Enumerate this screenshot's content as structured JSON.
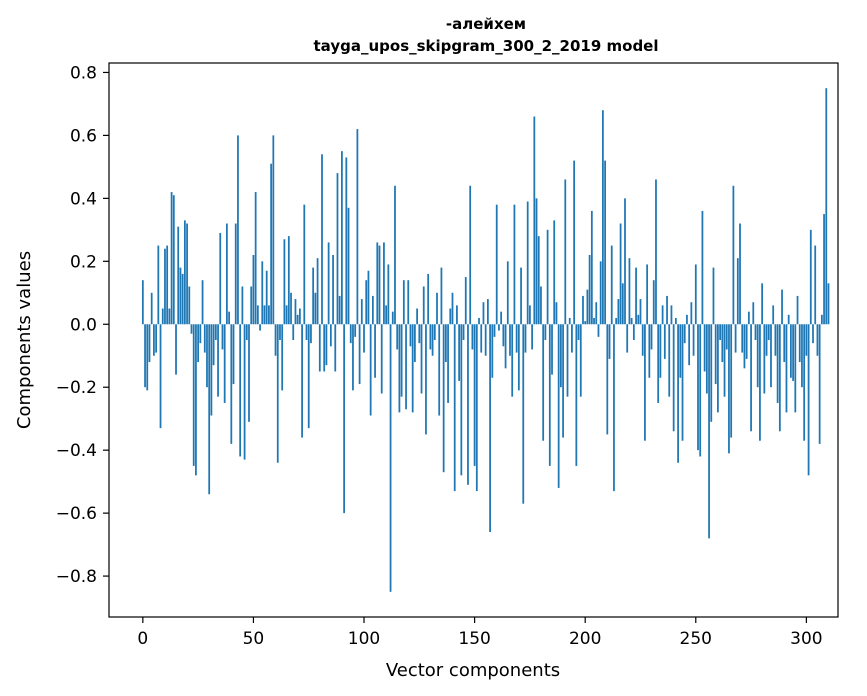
{
  "chart_data": {
    "type": "bar",
    "title": "-алейхем",
    "subtitle": "tayga_upos_skipgram_300_2_2019 model",
    "xlabel": "Vector components",
    "ylabel": "Components values",
    "xlim": [
      -15.3,
      314.3
    ],
    "ylim": [
      -0.93,
      0.83
    ],
    "xticks": [
      0,
      50,
      100,
      150,
      200,
      250,
      300
    ],
    "xtick_labels": [
      "0",
      "50",
      "100",
      "150",
      "200",
      "250",
      "300"
    ],
    "yticks": [
      -0.8,
      -0.6,
      -0.4,
      -0.2,
      0.0,
      0.2,
      0.4,
      0.6,
      0.8
    ],
    "ytick_labels": [
      "−0.8",
      "−0.6",
      "−0.4",
      "−0.2",
      "0.0",
      "0.2",
      "0.4",
      "0.6",
      "0.8"
    ],
    "grid": false,
    "bar_color": "#1f77b4",
    "series": [
      {
        "values": [
          0.14,
          -0.2,
          -0.21,
          -0.12,
          0.1,
          -0.1,
          -0.09,
          0.25,
          -0.33,
          0.05,
          0.24,
          0.25,
          0.05,
          0.42,
          0.41,
          -0.16,
          0.31,
          0.18,
          0.16,
          0.33,
          0.32,
          0.12,
          -0.03,
          -0.45,
          -0.48,
          -0.12,
          -0.06,
          0.14,
          -0.09,
          -0.2,
          -0.54,
          -0.29,
          -0.13,
          -0.05,
          -0.23,
          0.29,
          -0.08,
          -0.25,
          0.32,
          0.04,
          -0.38,
          -0.19,
          0.32,
          0.6,
          -0.42,
          0.12,
          -0.43,
          -0.05,
          -0.31,
          0.12,
          0.22,
          0.42,
          0.06,
          -0.02,
          0.2,
          0.06,
          0.17,
          0.06,
          0.51,
          0.6,
          -0.1,
          -0.44,
          -0.05,
          -0.21,
          0.27,
          0.06,
          0.28,
          0.1,
          -0.05,
          0.08,
          0.03,
          0.05,
          -0.36,
          0.38,
          -0.05,
          -0.33,
          -0.06,
          0.18,
          0.1,
          0.21,
          -0.15,
          0.54,
          -0.15,
          -0.13,
          0.26,
          -0.07,
          0.22,
          -0.15,
          0.48,
          0.09,
          0.55,
          -0.6,
          0.53,
          0.37,
          -0.06,
          -0.21,
          -0.04,
          0.62,
          -0.19,
          0.08,
          -0.09,
          0.14,
          0.17,
          -0.29,
          0.09,
          -0.17,
          0.26,
          0.25,
          -0.22,
          0.26,
          0.06,
          0.19,
          -0.85,
          0.04,
          0.44,
          -0.08,
          -0.28,
          -0.23,
          0.14,
          -0.27,
          0.14,
          -0.07,
          -0.28,
          -0.12,
          0.05,
          -0.06,
          -0.22,
          0.12,
          -0.35,
          0.16,
          -0.08,
          -0.1,
          -0.05,
          0.1,
          -0.29,
          0.18,
          -0.47,
          -0.12,
          -0.25,
          0.05,
          0.1,
          -0.53,
          0.06,
          -0.18,
          -0.48,
          -0.05,
          0.15,
          -0.51,
          0.44,
          -0.08,
          -0.45,
          -0.53,
          0.02,
          -0.09,
          0.07,
          -0.1,
          0.08,
          -0.66,
          -0.17,
          -0.04,
          0.38,
          -0.02,
          0.04,
          -0.07,
          -0.14,
          0.2,
          -0.1,
          -0.23,
          0.38,
          -0.09,
          -0.21,
          0.18,
          -0.57,
          -0.09,
          0.39,
          0.06,
          -0.08,
          0.66,
          0.4,
          0.28,
          0.12,
          -0.37,
          -0.05,
          0.3,
          -0.45,
          -0.16,
          0.33,
          0.07,
          -0.52,
          -0.2,
          -0.36,
          0.46,
          -0.23,
          0.02,
          -0.09,
          0.52,
          -0.45,
          -0.05,
          -0.23,
          0.09,
          0.01,
          0.11,
          0.22,
          0.36,
          0.02,
          0.07,
          -0.04,
          0.2,
          0.68,
          0.52,
          -0.35,
          -0.11,
          0.25,
          -0.53,
          0.02,
          0.08,
          0.32,
          0.13,
          0.4,
          -0.09,
          0.21,
          0.02,
          -0.05,
          0.18,
          0.03,
          0.08,
          -0.1,
          -0.37,
          0.19,
          -0.17,
          -0.08,
          0.14,
          0.46,
          -0.25,
          -0.17,
          0.06,
          -0.11,
          0.09,
          -0.23,
          0.06,
          -0.34,
          0.02,
          -0.44,
          -0.17,
          -0.37,
          -0.06,
          0.03,
          -0.13,
          0.07,
          -0.1,
          0.19,
          -0.4,
          -0.42,
          0.36,
          -0.15,
          -0.22,
          -0.68,
          -0.31,
          0.18,
          -0.19,
          -0.28,
          -0.05,
          -0.12,
          -0.23,
          -0.08,
          -0.41,
          -0.36,
          0.44,
          -0.09,
          0.21,
          0.32,
          -0.09,
          -0.14,
          -0.11,
          0.04,
          -0.34,
          0.07,
          -0.05,
          -0.2,
          -0.37,
          0.13,
          -0.22,
          -0.1,
          -0.05,
          -0.2,
          0.06,
          -0.1,
          -0.25,
          -0.34,
          0.11,
          -0.12,
          -0.28,
          0.03,
          -0.17,
          -0.18,
          -0.28,
          0.09,
          -0.12,
          -0.2,
          -0.37,
          -0.1,
          -0.48,
          0.3,
          -0.06,
          0.25,
          -0.1,
          -0.38,
          0.03,
          0.35,
          0.75,
          0.13
        ]
      }
    ]
  }
}
